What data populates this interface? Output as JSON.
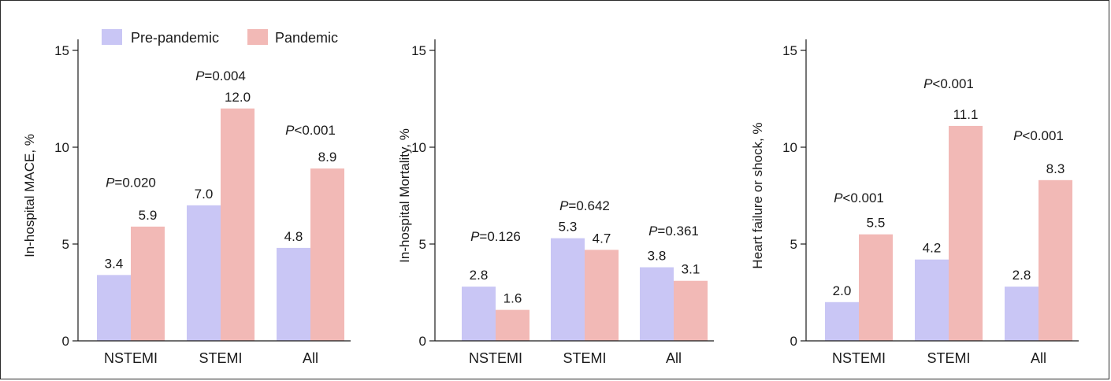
{
  "legend": [
    {
      "label": "Pre-pandemic",
      "color": "#c9c6f5"
    },
    {
      "label": "Pandemic",
      "color": "#f2b9b6"
    }
  ],
  "chart_data": [
    {
      "type": "bar",
      "ylabel": "In-hospital MACE, %",
      "ylim": [
        0,
        15
      ],
      "yticks": [
        0,
        5,
        10,
        15
      ],
      "categories": [
        "NSTEMI",
        "STEMI",
        "All"
      ],
      "series": [
        {
          "name": "Pre-pandemic",
          "values": [
            3.4,
            7.0,
            4.8
          ],
          "labels": [
            "3.4",
            "7.0",
            "4.8"
          ]
        },
        {
          "name": "Pandemic",
          "values": [
            5.9,
            12.0,
            8.9
          ],
          "labels": [
            "5.9",
            "12.0",
            "8.9"
          ]
        }
      ],
      "pvalues": [
        {
          "op": "=",
          "value": "0.020",
          "y": 8.2
        },
        {
          "op": "=",
          "value": "0.004",
          "y": 13.7
        },
        {
          "op": "<",
          "value": "0.001",
          "y": 10.9
        }
      ]
    },
    {
      "type": "bar",
      "ylabel": "In-hospital Mortality, %",
      "ylim": [
        0,
        15
      ],
      "yticks": [
        0,
        5,
        10,
        15
      ],
      "categories": [
        "NSTEMI",
        "STEMI",
        "All"
      ],
      "series": [
        {
          "name": "Pre-pandemic",
          "values": [
            2.8,
            5.3,
            3.8
          ],
          "labels": [
            "2.8",
            "5.3",
            "3.8"
          ]
        },
        {
          "name": "Pandemic",
          "values": [
            1.6,
            4.7,
            3.1
          ],
          "labels": [
            "1.6",
            "4.7",
            "3.1"
          ]
        }
      ],
      "pvalues": [
        {
          "op": "=",
          "value": "0.126",
          "y": 5.4
        },
        {
          "op": "=",
          "value": "0.642",
          "y": 7.0
        },
        {
          "op": "=",
          "value": "0.361",
          "y": 5.7
        }
      ]
    },
    {
      "type": "bar",
      "ylabel": "Heart failure or shock, %",
      "ylim": [
        0,
        15
      ],
      "yticks": [
        0,
        5,
        10,
        15
      ],
      "categories": [
        "NSTEMI",
        "STEMI",
        "All"
      ],
      "series": [
        {
          "name": "Pre-pandemic",
          "values": [
            2.0,
            4.2,
            2.8
          ],
          "labels": [
            "2.0",
            "4.2",
            "2.8"
          ]
        },
        {
          "name": "Pandemic",
          "values": [
            5.5,
            11.1,
            8.3
          ],
          "labels": [
            "5.5",
            "11.1",
            "8.3"
          ]
        }
      ],
      "pvalues": [
        {
          "op": "<",
          "value": "0.001",
          "y": 7.4
        },
        {
          "op": "<",
          "value": "0.001",
          "y": 13.3
        },
        {
          "op": "<",
          "value": "0.001",
          "y": 10.6
        }
      ]
    }
  ]
}
